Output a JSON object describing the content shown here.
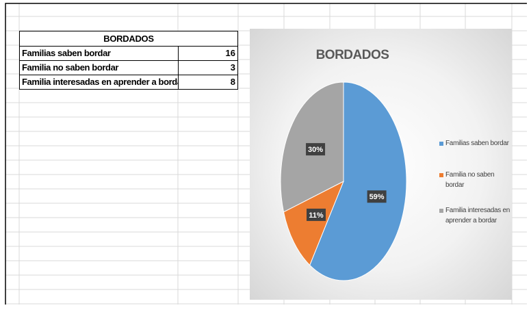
{
  "table": {
    "title": "BORDADOS",
    "rows": [
      [
        "Familias saben bordar",
        16
      ],
      [
        "Familia no saben bordar",
        3
      ],
      [
        "Familia interesadas en aprender a bordar",
        8
      ]
    ]
  },
  "chart_data": {
    "type": "pie",
    "title": "BORDADOS",
    "categories": [
      "Familias saben bordar",
      "Familia no saben bordar",
      "Familia interesadas en aprender a bordar"
    ],
    "values": [
      59,
      11,
      30
    ],
    "value_labels": [
      "59%",
      "11%",
      "30%"
    ],
    "colors": [
      "#5b9bd5",
      "#ed7d31",
      "#a5a5a5"
    ],
    "legend": "right"
  }
}
